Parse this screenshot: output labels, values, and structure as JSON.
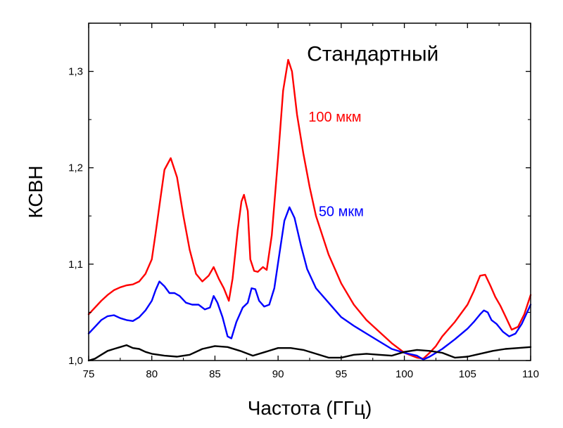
{
  "chart_data": {
    "type": "line",
    "title": "",
    "xlabel": "Частота (ГГц)",
    "ylabel": "КСВН",
    "xlim": [
      75,
      110
    ],
    "ylim": [
      1.0,
      1.35
    ],
    "x_ticks": [
      75,
      80,
      85,
      90,
      95,
      100,
      105,
      110
    ],
    "x_tick_labels": [
      "75",
      "80",
      "85",
      "90",
      "95",
      "100",
      "105",
      "110"
    ],
    "y_ticks": [
      1.0,
      1.1,
      1.2,
      1.3
    ],
    "y_tick_labels": [
      "1,0",
      "1,1",
      "1,2",
      "1,3"
    ],
    "grid": false,
    "annotations": [
      {
        "text": "Стандартный",
        "x": 97.5,
        "y": 1.311,
        "color": "#000000",
        "size": "large"
      },
      {
        "text": "100 мкм",
        "x": 94.5,
        "y": 1.248,
        "color": "#ff0000",
        "size": "medium"
      },
      {
        "text": "50 мкм",
        "x": 95.0,
        "y": 1.15,
        "color": "#0000ff",
        "size": "medium"
      }
    ],
    "series": [
      {
        "color": "#ff0000",
        "x": [
          75,
          75.5,
          76,
          76.5,
          77,
          77.5,
          78,
          78.5,
          79,
          79.5,
          80,
          80.3,
          80.7,
          81,
          81.5,
          82,
          82.5,
          83,
          83.5,
          84,
          84.5,
          84.9,
          85.3,
          85.7,
          86.1,
          86.4,
          86.8,
          87.1,
          87.3,
          87.6,
          87.8,
          88.1,
          88.4,
          88.8,
          89.1,
          89.5,
          90,
          90.4,
          90.8,
          91.1,
          91.5,
          92,
          92.5,
          93,
          94,
          95,
          96,
          97,
          98,
          99,
          100,
          101,
          101.5,
          102,
          102.5,
          103,
          104,
          105,
          105.5,
          106,
          106.4,
          106.8,
          107.2,
          107.6,
          108,
          108.5,
          109,
          109.5,
          110
        ],
        "values": [
          1.048,
          1.055,
          1.062,
          1.068,
          1.073,
          1.076,
          1.078,
          1.079,
          1.082,
          1.09,
          1.105,
          1.132,
          1.17,
          1.198,
          1.21,
          1.19,
          1.15,
          1.115,
          1.09,
          1.082,
          1.088,
          1.097,
          1.085,
          1.075,
          1.062,
          1.085,
          1.135,
          1.165,
          1.172,
          1.155,
          1.105,
          1.093,
          1.092,
          1.097,
          1.094,
          1.13,
          1.21,
          1.28,
          1.312,
          1.3,
          1.255,
          1.215,
          1.18,
          1.15,
          1.11,
          1.08,
          1.058,
          1.042,
          1.03,
          1.018,
          1.008,
          1.003,
          1.002,
          1.008,
          1.015,
          1.025,
          1.04,
          1.058,
          1.072,
          1.088,
          1.089,
          1.078,
          1.066,
          1.057,
          1.046,
          1.032,
          1.035,
          1.048,
          1.068
        ]
      },
      {
        "color": "#0000ff",
        "x": [
          75,
          75.5,
          76,
          76.5,
          77,
          77.5,
          78,
          78.5,
          79,
          79.5,
          80,
          80.3,
          80.6,
          81,
          81.4,
          81.8,
          82.2,
          82.7,
          83.2,
          83.7,
          84.2,
          84.6,
          84.9,
          85.2,
          85.6,
          86,
          86.3,
          86.7,
          87.2,
          87.6,
          87.9,
          88.2,
          88.5,
          88.9,
          89.3,
          89.7,
          90.1,
          90.5,
          90.9,
          91.3,
          91.8,
          92.3,
          93,
          94,
          95,
          96,
          97,
          98,
          99,
          100,
          101,
          101.5,
          102,
          103,
          104,
          105,
          105.5,
          106,
          106.3,
          106.6,
          106.9,
          107.3,
          107.8,
          108.3,
          108.8,
          109.3,
          110
        ],
        "values": [
          1.028,
          1.035,
          1.042,
          1.046,
          1.047,
          1.044,
          1.042,
          1.041,
          1.045,
          1.052,
          1.062,
          1.073,
          1.082,
          1.077,
          1.07,
          1.07,
          1.067,
          1.06,
          1.058,
          1.058,
          1.053,
          1.055,
          1.067,
          1.06,
          1.045,
          1.025,
          1.023,
          1.04,
          1.055,
          1.06,
          1.075,
          1.074,
          1.062,
          1.056,
          1.058,
          1.075,
          1.11,
          1.145,
          1.159,
          1.148,
          1.12,
          1.095,
          1.075,
          1.06,
          1.045,
          1.036,
          1.028,
          1.02,
          1.012,
          1.008,
          1.005,
          1.001,
          1.004,
          1.012,
          1.022,
          1.033,
          1.04,
          1.048,
          1.052,
          1.05,
          1.042,
          1.038,
          1.03,
          1.025,
          1.028,
          1.038,
          1.058
        ]
      },
      {
        "color": "#000000",
        "x": [
          75,
          75.5,
          76,
          76.5,
          77,
          77.5,
          78,
          78.5,
          79,
          79.5,
          80,
          81,
          82,
          83,
          84,
          85,
          86,
          87,
          88,
          89,
          90,
          91,
          92,
          93,
          94,
          95,
          96,
          97,
          98,
          99,
          100,
          101,
          102,
          103,
          104,
          105,
          106,
          107,
          108,
          109,
          110
        ],
        "values": [
          1.0,
          1.002,
          1.006,
          1.01,
          1.012,
          1.014,
          1.016,
          1.013,
          1.012,
          1.009,
          1.007,
          1.005,
          1.004,
          1.006,
          1.012,
          1.015,
          1.014,
          1.01,
          1.005,
          1.009,
          1.013,
          1.013,
          1.011,
          1.007,
          1.003,
          1.003,
          1.006,
          1.007,
          1.006,
          1.005,
          1.009,
          1.011,
          1.01,
          1.008,
          1.003,
          1.004,
          1.007,
          1.01,
          1.012,
          1.013,
          1.014
        ]
      }
    ]
  }
}
